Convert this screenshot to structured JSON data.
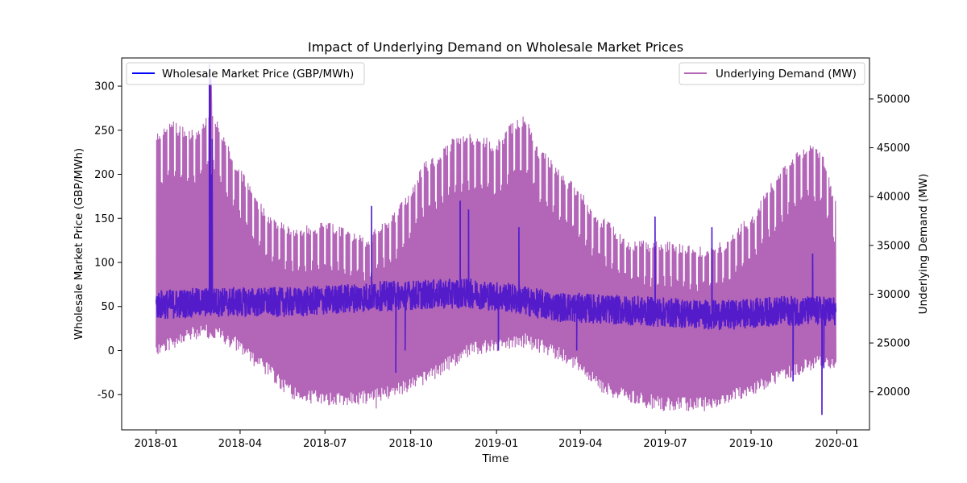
{
  "chart_data": {
    "type": "line",
    "title": "Impact of Underlying Demand on Wholesale Market Prices",
    "xlabel": "Time",
    "ylabel_left": "Wholesale Market Price (GBP/MWh)",
    "ylabel_right": "Underlying Demand (MW)",
    "x_range": [
      "2017-11-25",
      "2020-02-05"
    ],
    "ylim_left": [
      -90,
      332
    ],
    "ylim_right": [
      16100,
      54200
    ],
    "x_ticks": [
      "2018-01",
      "2018-04",
      "2018-07",
      "2018-10",
      "2019-01",
      "2019-04",
      "2019-07",
      "2019-10",
      "2020-01"
    ],
    "y_ticks_left": [
      -50,
      0,
      50,
      100,
      150,
      200,
      250,
      300
    ],
    "y_ticks_right": [
      20000,
      25000,
      30000,
      35000,
      40000,
      45000,
      50000
    ],
    "grid": false,
    "series": [
      {
        "name": "Underlying Demand (MW)",
        "axis": "right",
        "color": "#9932a0",
        "alpha": 0.75,
        "weekly_peak_envelope": [
          [
            "2018-01-01",
            46500
          ],
          [
            "2018-01-15",
            48000
          ],
          [
            "2018-02-01",
            47000
          ],
          [
            "2018-02-15",
            47000
          ],
          [
            "2018-03-01",
            49500
          ],
          [
            "2018-03-15",
            46000
          ],
          [
            "2018-04-01",
            43000
          ],
          [
            "2018-04-15",
            40500
          ],
          [
            "2018-05-01",
            38500
          ],
          [
            "2018-05-15",
            37500
          ],
          [
            "2018-06-01",
            37000
          ],
          [
            "2018-07-01",
            37500
          ],
          [
            "2018-08-01",
            36500
          ],
          [
            "2018-08-15",
            36000
          ],
          [
            "2018-09-01",
            37500
          ],
          [
            "2018-09-15",
            38500
          ],
          [
            "2018-10-01",
            41000
          ],
          [
            "2018-10-15",
            43500
          ],
          [
            "2018-11-01",
            44500
          ],
          [
            "2018-11-15",
            46000
          ],
          [
            "2018-12-01",
            46500
          ],
          [
            "2018-12-15",
            46500
          ],
          [
            "2019-01-01",
            45500
          ],
          [
            "2019-01-15",
            47500
          ],
          [
            "2019-02-01",
            48500
          ],
          [
            "2019-02-15",
            45000
          ],
          [
            "2019-03-01",
            44000
          ],
          [
            "2019-03-15",
            42000
          ],
          [
            "2019-04-01",
            41000
          ],
          [
            "2019-04-15",
            38500
          ],
          [
            "2019-05-01",
            37500
          ],
          [
            "2019-05-15",
            36000
          ],
          [
            "2019-06-01",
            35500
          ],
          [
            "2019-07-01",
            35500
          ],
          [
            "2019-08-01",
            35000
          ],
          [
            "2019-08-15",
            35000
          ],
          [
            "2019-09-01",
            35500
          ],
          [
            "2019-09-15",
            37000
          ],
          [
            "2019-10-01",
            38000
          ],
          [
            "2019-10-15",
            40500
          ],
          [
            "2019-11-01",
            42500
          ],
          [
            "2019-11-15",
            44500
          ],
          [
            "2019-12-01",
            45500
          ],
          [
            "2019-12-15",
            45000
          ],
          [
            "2019-12-31",
            39500
          ]
        ],
        "weekly_trough_envelope": [
          [
            "2018-01-01",
            25000
          ],
          [
            "2018-02-01",
            26500
          ],
          [
            "2018-03-01",
            27000
          ],
          [
            "2018-04-01",
            25500
          ],
          [
            "2018-04-15",
            24000
          ],
          [
            "2018-05-01",
            23000
          ],
          [
            "2018-05-15",
            21500
          ],
          [
            "2018-06-01",
            20500
          ],
          [
            "2018-07-01",
            20000
          ],
          [
            "2018-08-01",
            20000
          ],
          [
            "2018-09-01",
            20500
          ],
          [
            "2018-10-01",
            21500
          ],
          [
            "2018-11-01",
            23000
          ],
          [
            "2018-12-01",
            25000
          ],
          [
            "2019-01-01",
            25500
          ],
          [
            "2019-02-01",
            26000
          ],
          [
            "2019-03-01",
            25000
          ],
          [
            "2019-04-01",
            23500
          ],
          [
            "2019-04-15",
            22000
          ],
          [
            "2019-05-01",
            21000
          ],
          [
            "2019-06-01",
            20000
          ],
          [
            "2019-07-01",
            19500
          ],
          [
            "2019-08-01",
            19500
          ],
          [
            "2019-09-01",
            20000
          ],
          [
            "2019-10-01",
            21000
          ],
          [
            "2019-11-01",
            22500
          ],
          [
            "2019-12-01",
            23500
          ],
          [
            "2019-12-31",
            24000
          ]
        ],
        "daily_extremes": [
          [
            "2018-03-01",
            52000
          ],
          [
            "2018-08-25",
            18300
          ],
          [
            "2019-08-12",
            18000
          ]
        ]
      },
      {
        "name": "Wholesale Market Price (GBP/MWh)",
        "axis": "left",
        "color": "#0000ff",
        "baseline": [
          [
            "2018-01-01",
            52
          ],
          [
            "2018-03-01",
            55
          ],
          [
            "2018-06-01",
            55
          ],
          [
            "2018-09-01",
            62
          ],
          [
            "2018-12-01",
            65
          ],
          [
            "2019-01-15",
            60
          ],
          [
            "2019-03-01",
            50
          ],
          [
            "2019-06-01",
            45
          ],
          [
            "2019-09-01",
            40
          ],
          [
            "2019-11-01",
            45
          ],
          [
            "2019-12-31",
            45
          ]
        ],
        "spikes": [
          [
            "2018-02-27",
            325
          ],
          [
            "2018-02-28",
            310
          ],
          [
            "2018-03-02",
            240
          ],
          [
            "2018-03-01",
            200
          ],
          [
            "2018-08-20",
            164
          ],
          [
            "2018-11-23",
            170
          ],
          [
            "2018-12-02",
            160
          ],
          [
            "2019-01-25",
            140
          ],
          [
            "2019-06-20",
            152
          ],
          [
            "2019-08-20",
            140
          ],
          [
            "2019-12-06",
            110
          ]
        ],
        "dips": [
          [
            "2018-09-15",
            -25
          ],
          [
            "2018-09-25",
            0
          ],
          [
            "2019-01-03",
            0
          ],
          [
            "2019-03-28",
            0
          ],
          [
            "2019-11-15",
            -35
          ],
          [
            "2019-12-16",
            -73
          ],
          [
            "2019-12-18",
            -20
          ]
        ]
      }
    ],
    "legend": [
      {
        "label": "Wholesale Market Price (GBP/MWh)",
        "position": "upper-left",
        "color": "#0000ff"
      },
      {
        "label": "Underlying Demand (MW)",
        "position": "upper-right",
        "color": "#b565b5"
      }
    ]
  }
}
